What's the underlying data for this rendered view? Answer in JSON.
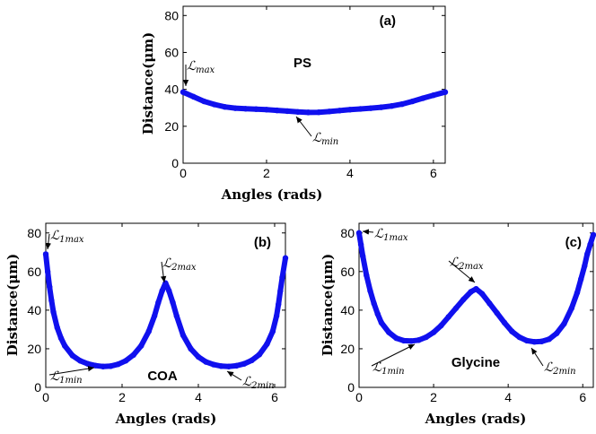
{
  "chart_data": [
    {
      "type": "line",
      "panel_label": "(a)",
      "name_label": "PS",
      "xlabel": "Angles (rads)",
      "ylabel": "Distance(μm)",
      "xlim": [
        0,
        6.283
      ],
      "ylim": [
        0,
        85
      ],
      "xticks": [
        0,
        2,
        4,
        6
      ],
      "yticks": [
        0,
        20,
        40,
        60,
        80
      ],
      "x": [
        0,
        0.25,
        0.5,
        0.75,
        1.0,
        1.25,
        1.5,
        1.75,
        2.0,
        2.25,
        2.5,
        2.75,
        3.0,
        3.25,
        3.5,
        3.75,
        4.0,
        4.25,
        4.5,
        4.75,
        5.0,
        5.25,
        5.5,
        5.75,
        6.0,
        6.283
      ],
      "y": [
        38.5,
        36,
        33.5,
        31.8,
        30.5,
        29.8,
        29.5,
        29.3,
        29.0,
        28.6,
        28.2,
        27.8,
        27.5,
        27.6,
        28.0,
        28.5,
        29.0,
        29.4,
        29.8,
        30.3,
        31.0,
        32.0,
        33.5,
        35.2,
        36.8,
        38.5
      ],
      "color": "#1010ee",
      "annotations": [
        {
          "base": "ℒ",
          "sub": "max",
          "x": 0,
          "y": 38.5
        },
        {
          "base": "ℒ",
          "sub": "min",
          "x": 3.1,
          "y": 27.5
        }
      ]
    },
    {
      "type": "line",
      "panel_label": "(b)",
      "name_label": "COA",
      "xlabel": "Angles (rads)",
      "ylabel": "Distance(μm)",
      "xlim": [
        0,
        6.283
      ],
      "ylim": [
        0,
        85
      ],
      "xticks": [
        0,
        2,
        4,
        6
      ],
      "yticks": [
        0,
        20,
        40,
        60,
        80
      ],
      "x": [
        0,
        0.05,
        0.1,
        0.15,
        0.2,
        0.3,
        0.4,
        0.5,
        0.7,
        0.9,
        1.1,
        1.3,
        1.5,
        1.7,
        1.9,
        2.1,
        2.3,
        2.5,
        2.7,
        2.85,
        2.95,
        3.05,
        3.14,
        3.23,
        3.33,
        3.43,
        3.6,
        3.8,
        4.0,
        4.2,
        4.4,
        4.6,
        4.8,
        5.0,
        5.2,
        5.4,
        5.6,
        5.8,
        5.95,
        6.05,
        6.1,
        6.15,
        6.2,
        6.283
      ],
      "y": [
        69,
        60,
        52,
        45,
        39,
        31,
        25.5,
        21.5,
        16.5,
        13.8,
        12.2,
        11.3,
        10.8,
        11.0,
        12.0,
        13.8,
        16.8,
        21.5,
        29,
        37,
        44,
        50,
        54,
        50,
        44,
        37,
        27,
        20,
        15.8,
        13.2,
        11.8,
        11.0,
        10.8,
        11.2,
        12.2,
        14,
        17,
        22.5,
        29,
        37,
        43,
        50,
        57,
        67
      ],
      "color": "#1010ee",
      "annotations": [
        {
          "base": "ℒ",
          "sub": "1max",
          "x": 0,
          "y": 69
        },
        {
          "base": "ℒ",
          "sub": "2max",
          "x": 3.14,
          "y": 54
        },
        {
          "base": "ℒ",
          "sub": "1min",
          "x": 1.5,
          "y": 10.8
        },
        {
          "base": "ℒ",
          "sub": "2min",
          "x": 4.7,
          "y": 10.8
        }
      ]
    },
    {
      "type": "line",
      "panel_label": "(c)",
      "name_label": "Glycine",
      "xlabel": "Angles (rads)",
      "ylabel": "Distance(μm)",
      "xlim": [
        0,
        6.283
      ],
      "ylim": [
        0,
        85
      ],
      "xticks": [
        0,
        2,
        4,
        6
      ],
      "yticks": [
        0,
        20,
        40,
        60,
        80
      ],
      "x": [
        0,
        0.05,
        0.1,
        0.2,
        0.3,
        0.4,
        0.5,
        0.6,
        0.8,
        1.0,
        1.2,
        1.4,
        1.6,
        1.8,
        2.0,
        2.2,
        2.4,
        2.6,
        2.8,
        3.0,
        3.14,
        3.3,
        3.5,
        3.7,
        3.9,
        4.1,
        4.3,
        4.5,
        4.7,
        4.9,
        5.1,
        5.3,
        5.5,
        5.7,
        5.85,
        5.95,
        6.05,
        6.12,
        6.2,
        6.283
      ],
      "y": [
        80,
        74,
        68,
        58,
        50,
        43.5,
        38,
        33.5,
        28.5,
        25.5,
        24.2,
        24.0,
        24.5,
        26,
        28.5,
        32,
        36.5,
        41,
        45.5,
        49.5,
        51,
        48.5,
        43.5,
        38.5,
        33.5,
        29,
        26,
        24.2,
        23.6,
        23.8,
        25,
        28,
        33,
        41,
        49,
        56,
        63,
        69,
        74,
        79
      ],
      "color": "#1010ee",
      "annotations": [
        {
          "base": "ℒ",
          "sub": "1max",
          "x": 0,
          "y": 80
        },
        {
          "base": "ℒ",
          "sub": "2max",
          "x": 3.14,
          "y": 51
        },
        {
          "base": "ℒ",
          "sub": "1min",
          "x": 1.4,
          "y": 24
        },
        {
          "base": "ℒ",
          "sub": "2min",
          "x": 4.8,
          "y": 23.6
        }
      ]
    }
  ]
}
